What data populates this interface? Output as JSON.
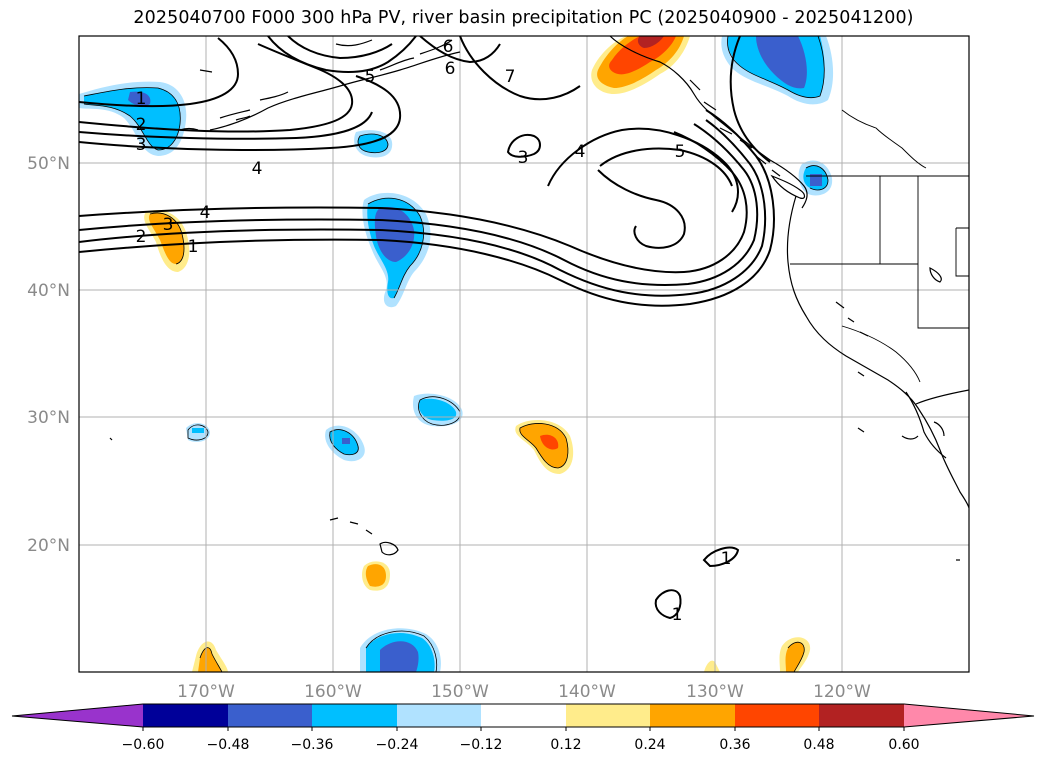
{
  "title": "2025040700 F000 300 hPa PV, river basin precipitation PC (2025040900 - 2025041200)",
  "map": {
    "lat_labels": [
      "50°N",
      "40°N",
      "30°N",
      "20°N"
    ],
    "lon_labels": [
      "170°W",
      "160°W",
      "150°W",
      "140°W",
      "130°W",
      "120°W"
    ],
    "lon_range_deg": [
      -180,
      -110
    ],
    "lat_range_deg": [
      10,
      60
    ]
  },
  "pv_contour_labels": [
    {
      "id": "pv-label-1-a",
      "text": "1"
    },
    {
      "id": "pv-label-2-a",
      "text": "2"
    },
    {
      "id": "pv-label-3-a",
      "text": "3"
    },
    {
      "id": "pv-label-4-a",
      "text": "4"
    },
    {
      "id": "pv-label-4-b",
      "text": "4"
    },
    {
      "id": "pv-label-3-b",
      "text": "3"
    },
    {
      "id": "pv-label-2-b",
      "text": "2"
    },
    {
      "id": "pv-label-1-b",
      "text": "1"
    },
    {
      "id": "pv-label-5-a",
      "text": "5"
    },
    {
      "id": "pv-label-6-a",
      "text": "6"
    },
    {
      "id": "pv-label-6-b",
      "text": "6"
    },
    {
      "id": "pv-label-7-a",
      "text": "7"
    },
    {
      "id": "pv-label-3-c",
      "text": "3"
    },
    {
      "id": "pv-label-4-c",
      "text": "4"
    },
    {
      "id": "pv-label-5-b",
      "text": "5"
    },
    {
      "id": "pv-label-1-c",
      "text": "1"
    },
    {
      "id": "pv-label-1-d",
      "text": "1"
    }
  ],
  "colorbar": {
    "labels": [
      "−0.60",
      "−0.48",
      "−0.36",
      "−0.24",
      "−0.12",
      "0.12",
      "0.24",
      "0.36",
      "0.48",
      "0.60"
    ],
    "colors": [
      "#9933cc",
      "#000099",
      "#3a5fcd",
      "#00bfff",
      "#b0e2ff",
      "#ffffff",
      "#ffec8b",
      "#ffa500",
      "#ff4500",
      "#b22222",
      "#ff88aa"
    ]
  },
  "colors": {
    "grid": "#b0b0b0",
    "coast": "#000000",
    "state_border": "#000000"
  }
}
